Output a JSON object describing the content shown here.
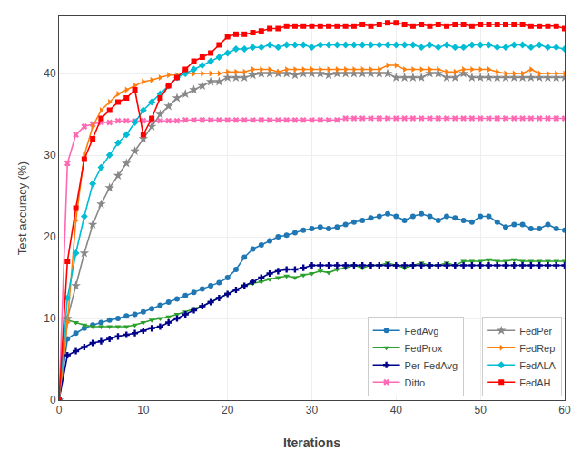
{
  "chart_data": {
    "type": "line",
    "xlabel": "Iterations",
    "ylabel": "Test accuracy (%)",
    "x": [
      0,
      1,
      2,
      3,
      4,
      5,
      6,
      7,
      8,
      9,
      10,
      11,
      12,
      13,
      14,
      15,
      16,
      17,
      18,
      19,
      20,
      21,
      22,
      23,
      24,
      25,
      26,
      27,
      28,
      29,
      30,
      31,
      32,
      33,
      34,
      35,
      36,
      37,
      38,
      39,
      40,
      41,
      42,
      43,
      44,
      45,
      46,
      47,
      48,
      49,
      50,
      51,
      52,
      53,
      54,
      55,
      56,
      57,
      58,
      59,
      60
    ],
    "xlim": [
      0,
      60
    ],
    "ylim": [
      0,
      47
    ],
    "xticks": [
      0,
      10,
      20,
      30,
      40,
      50,
      60
    ],
    "yticks": [
      0,
      10,
      20,
      30,
      40
    ],
    "grid": true,
    "legend": "lower right",
    "series": [
      {
        "name": "FedAvg",
        "color": "#1f77b4",
        "marker": "circle",
        "values": [
          0.0,
          7.5,
          8.2,
          8.8,
          9.2,
          9.5,
          9.8,
          10.0,
          10.3,
          10.5,
          10.8,
          11.2,
          11.6,
          12.0,
          12.4,
          12.8,
          13.2,
          13.6,
          14.0,
          14.4,
          15.0,
          16.0,
          17.5,
          18.5,
          19.0,
          19.5,
          20.0,
          20.2,
          20.5,
          20.8,
          21.0,
          21.2,
          21.0,
          21.2,
          21.5,
          21.8,
          22.0,
          22.3,
          22.5,
          22.8,
          22.5,
          22.0,
          22.5,
          22.8,
          22.5,
          22.0,
          22.5,
          22.3,
          22.0,
          21.8,
          22.5,
          22.5,
          21.8,
          21.2,
          21.5,
          21.5,
          21.0,
          21.0,
          21.5,
          21.0,
          20.8
        ]
      },
      {
        "name": "FedProx",
        "color": "#2ca02c",
        "marker": "triangle-down",
        "values": [
          0.0,
          9.8,
          9.5,
          9.2,
          9.0,
          9.0,
          9.0,
          9.0,
          9.0,
          9.2,
          9.5,
          9.8,
          10.0,
          10.2,
          10.5,
          10.8,
          11.2,
          11.5,
          12.0,
          12.5,
          13.0,
          13.5,
          14.0,
          14.3,
          14.5,
          14.8,
          15.0,
          15.2,
          15.0,
          15.3,
          15.5,
          15.8,
          15.6,
          16.0,
          16.2,
          16.5,
          16.2,
          16.5,
          16.5,
          16.8,
          16.5,
          16.2,
          16.5,
          16.8,
          16.5,
          16.5,
          16.8,
          16.5,
          17.0,
          17.0,
          17.0,
          17.2,
          17.0,
          17.0,
          17.2,
          17.0,
          17.0,
          17.0,
          17.0,
          17.0,
          17.0
        ]
      },
      {
        "name": "Per-FedAvg",
        "color": "#00008b",
        "marker": "cross",
        "values": [
          0.0,
          5.5,
          6.0,
          6.5,
          7.0,
          7.2,
          7.5,
          7.8,
          8.0,
          8.2,
          8.5,
          8.8,
          9.0,
          9.5,
          10.0,
          10.5,
          11.0,
          11.5,
          12.0,
          12.5,
          13.0,
          13.5,
          14.0,
          14.5,
          15.0,
          15.5,
          15.8,
          16.0,
          16.0,
          16.2,
          16.5,
          16.5,
          16.5,
          16.5,
          16.5,
          16.5,
          16.5,
          16.5,
          16.5,
          16.5,
          16.5,
          16.5,
          16.5,
          16.5,
          16.5,
          16.5,
          16.5,
          16.5,
          16.5,
          16.5,
          16.5,
          16.5,
          16.5,
          16.5,
          16.5,
          16.5,
          16.5,
          16.5,
          16.5,
          16.5,
          16.5
        ]
      },
      {
        "name": "Ditto",
        "color": "#ff69b4",
        "marker": "x",
        "values": [
          0.0,
          29.0,
          32.5,
          33.5,
          33.8,
          34.0,
          34.0,
          34.2,
          34.2,
          34.2,
          34.2,
          34.2,
          34.2,
          34.2,
          34.2,
          34.3,
          34.3,
          34.3,
          34.3,
          34.3,
          34.3,
          34.3,
          34.3,
          34.3,
          34.3,
          34.3,
          34.3,
          34.3,
          34.3,
          34.3,
          34.3,
          34.3,
          34.3,
          34.3,
          34.5,
          34.5,
          34.5,
          34.5,
          34.5,
          34.5,
          34.5,
          34.5,
          34.5,
          34.5,
          34.5,
          34.5,
          34.5,
          34.5,
          34.5,
          34.5,
          34.5,
          34.5,
          34.5,
          34.5,
          34.5,
          34.5,
          34.5,
          34.5,
          34.5,
          34.5,
          34.5
        ]
      },
      {
        "name": "FedPer",
        "color": "#888888",
        "marker": "star",
        "values": [
          0.0,
          10.0,
          14.0,
          18.0,
          21.5,
          24.0,
          26.0,
          27.5,
          29.0,
          30.5,
          32.0,
          33.5,
          35.0,
          36.0,
          37.0,
          37.5,
          38.0,
          38.5,
          39.0,
          39.0,
          39.5,
          39.5,
          39.5,
          39.8,
          40.0,
          40.0,
          40.0,
          40.0,
          39.8,
          40.0,
          40.0,
          40.0,
          39.8,
          40.0,
          40.0,
          40.0,
          40.0,
          40.0,
          40.0,
          40.0,
          39.5,
          39.5,
          39.5,
          39.5,
          40.0,
          40.0,
          39.5,
          39.5,
          40.0,
          39.5,
          39.5,
          39.5,
          39.5,
          39.5,
          39.5,
          39.5,
          39.5,
          39.5,
          39.5,
          39.5,
          39.5
        ]
      },
      {
        "name": "FedRep",
        "color": "#ff7f0e",
        "marker": "triangle-right",
        "values": [
          0.0,
          9.5,
          22.0,
          30.0,
          33.5,
          35.5,
          36.5,
          37.5,
          38.0,
          38.5,
          39.0,
          39.2,
          39.5,
          39.8,
          39.8,
          40.0,
          40.0,
          40.0,
          40.0,
          40.0,
          40.2,
          40.2,
          40.2,
          40.5,
          40.5,
          40.5,
          40.2,
          40.5,
          40.5,
          40.5,
          40.5,
          40.5,
          40.5,
          40.5,
          40.5,
          40.5,
          40.5,
          40.5,
          40.5,
          41.0,
          41.0,
          40.5,
          40.5,
          40.5,
          40.5,
          40.5,
          40.2,
          40.2,
          40.5,
          40.5,
          40.5,
          40.5,
          40.2,
          40.0,
          40.0,
          40.0,
          40.5,
          40.0,
          40.0,
          40.0,
          40.0
        ]
      },
      {
        "name": "FedALA",
        "color": "#00bcd4",
        "marker": "diamond",
        "values": [
          0.0,
          12.5,
          18.0,
          22.5,
          26.5,
          28.5,
          30.0,
          31.5,
          32.5,
          34.0,
          35.5,
          36.5,
          37.5,
          38.5,
          39.5,
          40.0,
          40.5,
          41.0,
          41.5,
          42.0,
          42.5,
          43.0,
          43.0,
          43.2,
          43.2,
          43.5,
          43.2,
          43.5,
          43.5,
          43.5,
          43.2,
          43.5,
          43.5,
          43.5,
          43.5,
          43.5,
          43.5,
          43.5,
          43.5,
          43.5,
          43.5,
          43.5,
          43.5,
          43.2,
          43.5,
          43.2,
          43.5,
          43.2,
          43.2,
          43.5,
          43.5,
          43.5,
          43.2,
          43.2,
          43.5,
          43.5,
          43.2,
          43.5,
          43.2,
          43.2,
          43.0
        ]
      },
      {
        "name": "FedAH",
        "color": "#ff0000",
        "marker": "square",
        "values": [
          0.0,
          17.0,
          23.5,
          29.5,
          32.0,
          34.5,
          35.5,
          36.5,
          37.0,
          38.0,
          32.5,
          34.5,
          37.0,
          38.5,
          39.5,
          40.5,
          41.5,
          42.0,
          42.5,
          43.5,
          44.5,
          44.8,
          44.8,
          45.0,
          45.2,
          45.5,
          45.5,
          45.8,
          45.8,
          45.8,
          45.8,
          45.8,
          45.8,
          45.8,
          45.8,
          45.8,
          46.0,
          45.8,
          46.0,
          46.2,
          46.2,
          46.0,
          45.8,
          46.0,
          45.8,
          46.0,
          45.8,
          46.0,
          46.0,
          45.8,
          46.0,
          46.0,
          46.0,
          46.0,
          46.0,
          46.0,
          45.8,
          45.8,
          45.8,
          45.8,
          45.5
        ]
      }
    ]
  }
}
